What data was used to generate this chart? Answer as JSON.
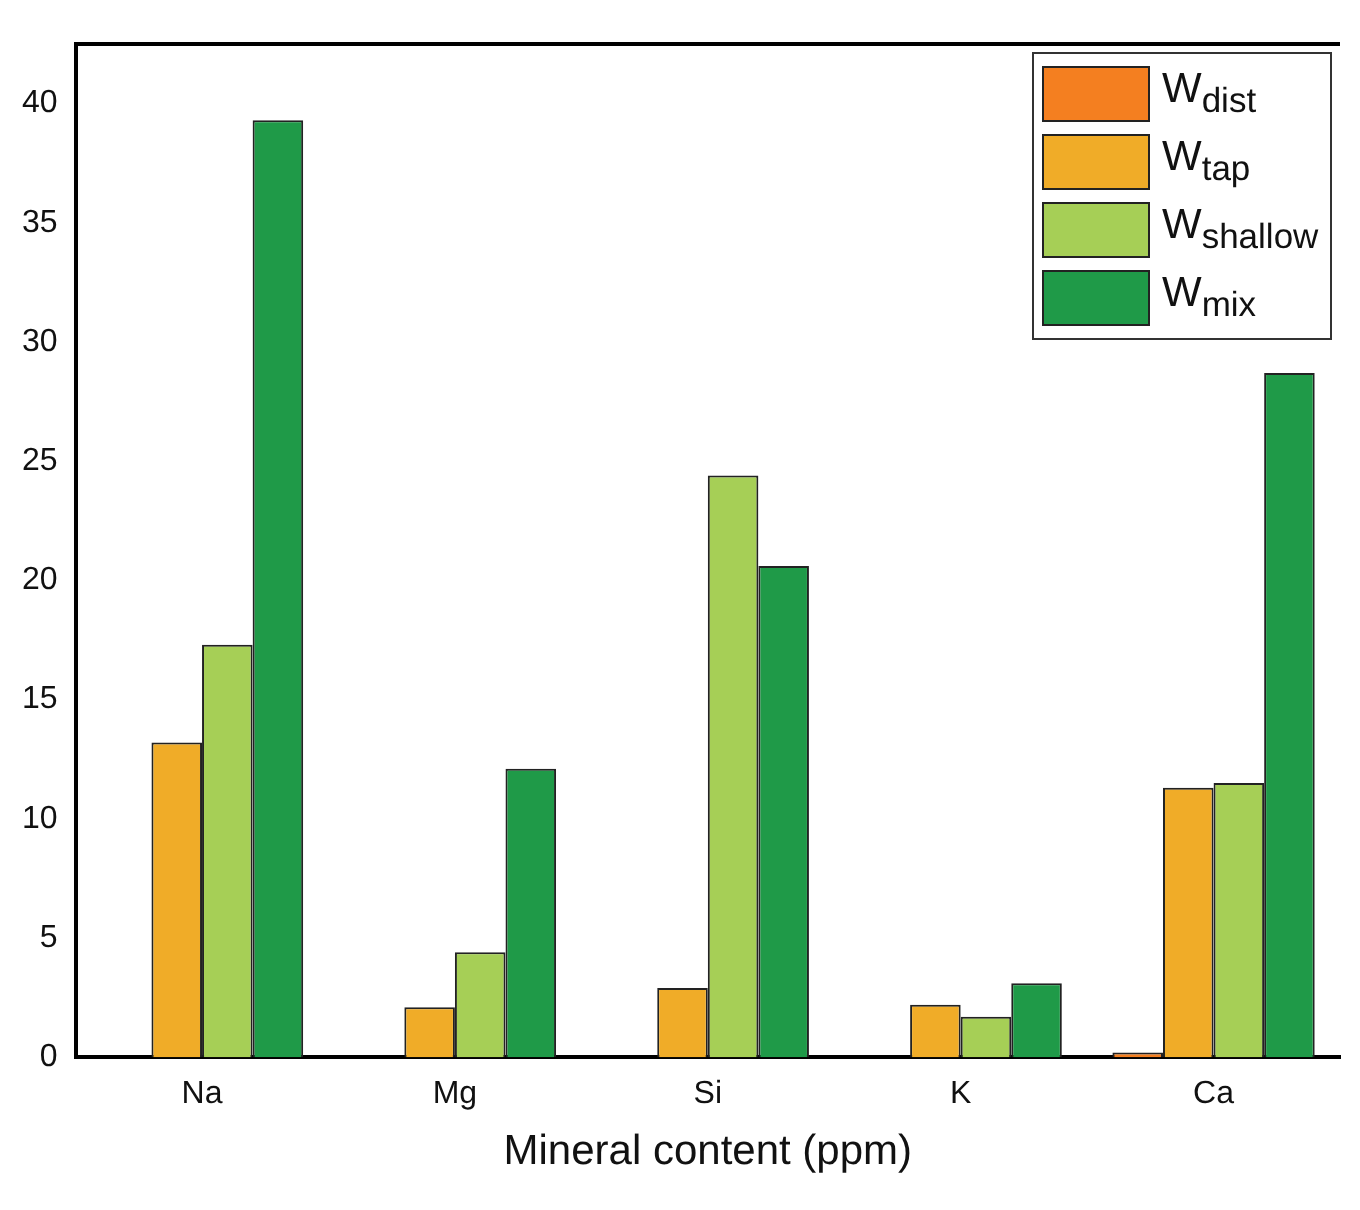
{
  "chart_data": {
    "type": "bar",
    "xlabel": "Mineral content (ppm)",
    "categories": [
      "Na",
      "Mg",
      "Si",
      "K",
      "Ca"
    ],
    "series": [
      {
        "name": "W$_{dist}$",
        "color": "#f47f20",
        "values": [
          0,
          0,
          0,
          0,
          0.2
        ]
      },
      {
        "name": "W$_{tap}$",
        "color": "#f0ac28",
        "values": [
          13.2,
          2.1,
          2.9,
          2.2,
          11.3
        ]
      },
      {
        "name": "W$_{shallow}$",
        "color": "#a6cf56",
        "values": [
          17.3,
          4.4,
          24.4,
          1.7,
          11.5
        ]
      },
      {
        "name": "W$_{mix}$",
        "color": "#1f9a48",
        "values": [
          39.3,
          12.1,
          20.6,
          3.1,
          28.7
        ]
      }
    ],
    "ylim": [
      0,
      42.5
    ],
    "yticks": [
      0,
      5,
      10,
      15,
      20,
      25,
      30,
      35,
      40
    ],
    "grid": false,
    "legend": "top right"
  }
}
